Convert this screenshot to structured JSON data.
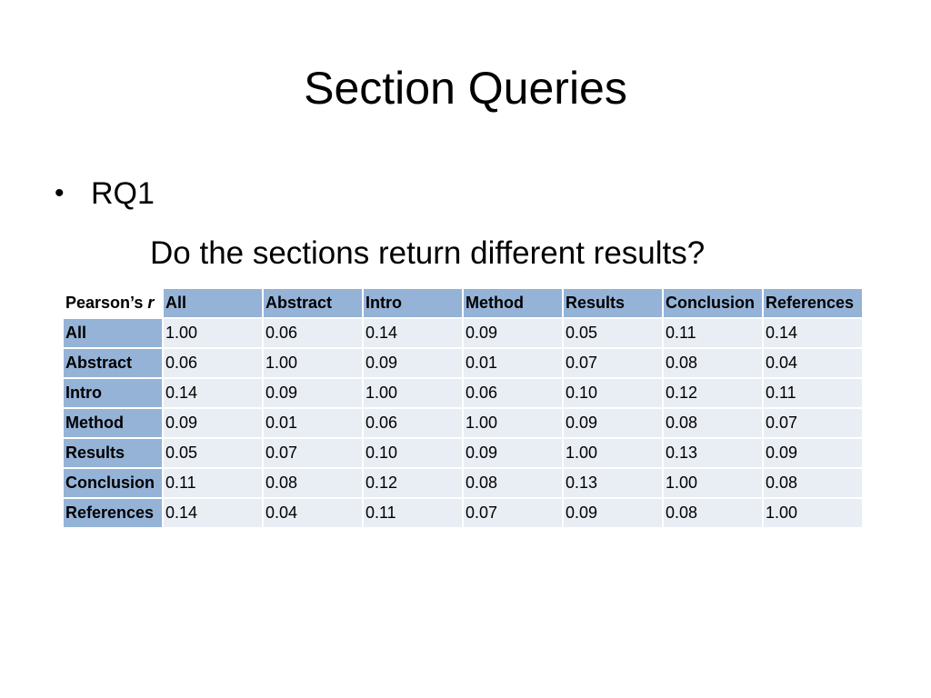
{
  "slide": {
    "title": "Section Queries",
    "bullet": "RQ1",
    "subtext": "Do the sections return different results?"
  },
  "table": {
    "corner_label": "Pearson’s",
    "corner_symbol": "r",
    "columns": [
      "All",
      "Abstract",
      "Intro",
      "Method",
      "Results",
      "Conclusion",
      "References"
    ],
    "rows": [
      {
        "label": "All",
        "values": [
          "1.00",
          "0.06",
          "0.14",
          "0.09",
          "0.05",
          "0.11",
          "0.14"
        ]
      },
      {
        "label": "Abstract",
        "values": [
          "0.06",
          "1.00",
          "0.09",
          "0.01",
          "0.07",
          "0.08",
          "0.04"
        ]
      },
      {
        "label": "Intro",
        "values": [
          "0.14",
          "0.09",
          "1.00",
          "0.06",
          "0.10",
          "0.12",
          "0.11"
        ]
      },
      {
        "label": "Method",
        "values": [
          "0.09",
          "0.01",
          "0.06",
          "1.00",
          "0.09",
          "0.08",
          "0.07"
        ]
      },
      {
        "label": "Results",
        "values": [
          "0.05",
          "0.07",
          "0.10",
          "0.09",
          "1.00",
          "0.13",
          "0.09"
        ]
      },
      {
        "label": "Conclusion",
        "values": [
          "0.11",
          "0.08",
          "0.12",
          "0.08",
          "0.13",
          "1.00",
          "0.08"
        ]
      },
      {
        "label": "References",
        "values": [
          "0.14",
          "0.04",
          "0.11",
          "0.07",
          "0.09",
          "0.08",
          "1.00"
        ]
      }
    ]
  },
  "colors": {
    "header_fill": "#95b3d7",
    "cell_fill": "#e9edf4"
  }
}
